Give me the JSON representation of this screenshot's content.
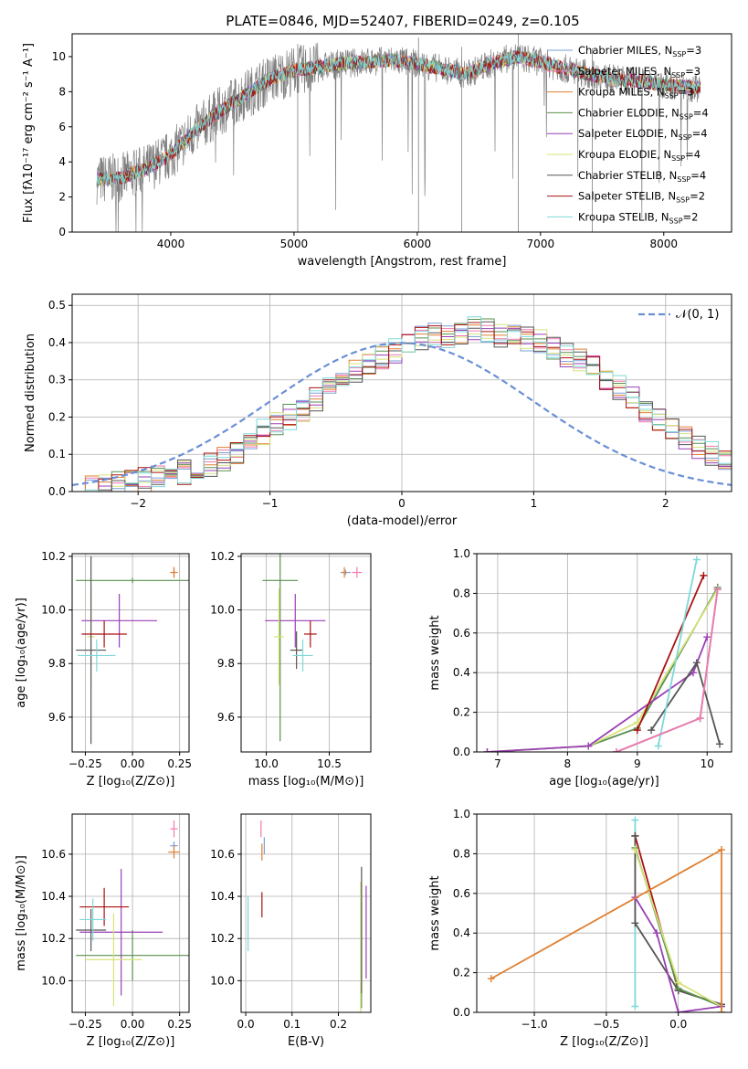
{
  "figure_title": "PLATE=0846, MJD=52407, FIBERID=0249, z=0.105",
  "colors": {
    "Chabrier MILES": "#7a9fd6",
    "Salpeter MILES": "#f07ab0",
    "Kroupa MILES": "#e07f30",
    "Chabrier ELODIE": "#5a8f4f",
    "Salpeter ELODIE": "#9a3fb5",
    "Kroupa ELODIE": "#d6e37a",
    "Chabrier STELIB": "#555555",
    "Salpeter STELIB": "#aa1111",
    "Kroupa STELIB": "#7fd8d8",
    "observed": "#808080",
    "normal": "#6a8fd6"
  },
  "chart_data": [
    {
      "id": "spectrum",
      "type": "line",
      "title": "PLATE=0846, MJD=52407, FIBERID=0249, z=0.105",
      "xlabel": "wavelength [Angstrom, rest frame]",
      "ylabel": "Flux [fλ10⁻¹⁷ erg cm⁻² s⁻¹ A⁻¹]",
      "xlim": [
        3200,
        8550
      ],
      "ylim": [
        0,
        11.3
      ],
      "xticks": [
        4000,
        5000,
        6000,
        7000,
        8000
      ],
      "yticks": [
        0,
        2,
        4,
        6,
        8,
        10
      ],
      "grid": false,
      "legend_position": "right",
      "continuum_x": [
        3400,
        3600,
        3800,
        4000,
        4200,
        4400,
        4600,
        4800,
        5000,
        5200,
        5400,
        5600,
        5800,
        6000,
        6200,
        6400,
        6600,
        6800,
        7000,
        7200,
        7400,
        7600,
        7800,
        8000,
        8300
      ],
      "continuum_y": [
        3.0,
        3.1,
        3.6,
        4.4,
        5.8,
        6.9,
        7.8,
        8.7,
        9.2,
        9.4,
        9.6,
        9.7,
        9.8,
        9.6,
        9.3,
        9.0,
        9.6,
        10.0,
        9.7,
        9.3,
        9.0,
        8.7,
        8.6,
        8.4,
        8.2
      ],
      "series": [
        {
          "name": "Chabrier MILES, N$_{SSP}$=3",
          "label_main": "Chabrier MILES, N",
          "label_sub": "SSP",
          "label_tail": "=3",
          "color": "#7a9fd6"
        },
        {
          "name": "Salpeter MILES, N$_{SSP}$=3",
          "label_main": "Salpeter MILES, N",
          "label_sub": "SSP",
          "label_tail": "=3",
          "color": "#f07ab0"
        },
        {
          "name": "Kroupa MILES, N$_{SSP}$=3",
          "label_main": "Kroupa MILES, N",
          "label_sub": "SSP",
          "label_tail": "=3",
          "color": "#e07f30"
        },
        {
          "name": "Chabrier ELODIE, N$_{SSP}$=4",
          "label_main": "Chabrier ELODIE, N",
          "label_sub": "SSP",
          "label_tail": "=4",
          "color": "#5a8f4f"
        },
        {
          "name": "Salpeter ELODIE, N$_{SSP}$=4",
          "label_main": "Salpeter ELODIE, N",
          "label_sub": "SSP",
          "label_tail": "=4",
          "color": "#9a3fb5"
        },
        {
          "name": "Kroupa ELODIE, N$_{SSP}$=4",
          "label_main": "Kroupa ELODIE, N",
          "label_sub": "SSP",
          "label_tail": "=4",
          "color": "#d6e37a"
        },
        {
          "name": "Chabrier STELIB, N$_{SSP}$=4",
          "label_main": "Chabrier STELIB, N",
          "label_sub": "SSP",
          "label_tail": "=4",
          "color": "#555555"
        },
        {
          "name": "Salpeter STELIB, N$_{SSP}$=2",
          "label_main": "Salpeter STELIB, N",
          "label_sub": "SSP",
          "label_tail": "=2",
          "color": "#aa1111"
        },
        {
          "name": "Kroupa STELIB, N$_{SSP}$=2",
          "label_main": "Kroupa STELIB, N",
          "label_sub": "SSP",
          "label_tail": "=2",
          "color": "#7fd8d8"
        }
      ]
    },
    {
      "id": "residuals",
      "type": "line",
      "xlabel": "(data-model)/error",
      "ylabel": "Normed distribution",
      "xlim": [
        -2.5,
        2.5
      ],
      "ylim": [
        0,
        0.53
      ],
      "xticks": [
        -2,
        -1,
        0,
        1,
        2
      ],
      "xticklabels": [
        "−2",
        "−1",
        "0",
        "1",
        "2"
      ],
      "yticks": [
        0.0,
        0.1,
        0.2,
        0.3,
        0.4,
        0.5
      ],
      "yticklabels": [
        "0.0",
        "0.1",
        "0.2",
        "0.3",
        "0.4",
        "0.5"
      ],
      "grid": true,
      "legend": "𝒩(0, 1)",
      "legend_position": "top-right",
      "normal_mu": 0,
      "normal_sigma": 1,
      "bin_width": 0.1,
      "bin_start": -2.5,
      "hist_base": [
        0.01,
        0.012,
        0.015,
        0.02,
        0.022,
        0.03,
        0.035,
        0.04,
        0.05,
        0.06,
        0.07,
        0.09,
        0.11,
        0.13,
        0.16,
        0.18,
        0.2,
        0.22,
        0.25,
        0.27,
        0.3,
        0.32,
        0.35,
        0.36,
        0.38,
        0.4,
        0.41,
        0.42,
        0.41,
        0.43,
        0.44,
        0.43,
        0.42,
        0.43,
        0.41,
        0.4,
        0.38,
        0.37,
        0.35,
        0.33,
        0.3,
        0.28,
        0.25,
        0.22,
        0.19,
        0.17,
        0.14,
        0.12,
        0.1,
        0.08
      ]
    },
    {
      "id": "age-vs-Z",
      "type": "scatter",
      "xlabel": "Z [log₁₀(Z/Z⊙)]",
      "ylabel": "age [log₁₀(age/yr)]",
      "xlim": [
        -0.32,
        0.3
      ],
      "ylim": [
        9.47,
        10.21
      ],
      "xticks": [
        -0.25,
        0.0,
        0.25
      ],
      "xticklabels": [
        "−0.25",
        "0.00",
        "0.25"
      ],
      "yticks": [
        9.6,
        9.8,
        10.0,
        10.2
      ],
      "yticklabels": [
        "9.6",
        "9.8",
        "10.0",
        "10.2"
      ],
      "grid": true,
      "points": [
        {
          "series": "Chabrier MILES",
          "x": 0.22,
          "y": 10.14,
          "xerr": 0.005,
          "yerr": 0.01
        },
        {
          "series": "Salpeter MILES",
          "x": 0.22,
          "y": 10.14,
          "xerr": 0.005,
          "yerr": 0.02
        },
        {
          "series": "Kroupa MILES",
          "x": 0.22,
          "y": 10.14,
          "xerr": 0.02,
          "yerr": 0.02
        },
        {
          "series": "Chabrier ELODIE",
          "x": 0.0,
          "y": 10.11,
          "xerr": 0.3,
          "yerr": 0.01
        },
        {
          "series": "Salpeter ELODIE",
          "x": -0.07,
          "y": 9.96,
          "xerr": 0.2,
          "yerr": 0.1
        },
        {
          "series": "Kroupa ELODIE",
          "x": -0.22,
          "y": 9.9,
          "xerr": 0.02,
          "yerr": 0.18
        },
        {
          "series": "Chabrier STELIB",
          "x": -0.22,
          "y": 9.85,
          "xerr": 0.08,
          "yerr": 0.35
        },
        {
          "series": "Salpeter STELIB",
          "x": -0.15,
          "y": 9.91,
          "xerr": 0.12,
          "yerr": 0.05
        },
        {
          "series": "Kroupa STELIB",
          "x": -0.19,
          "y": 9.83,
          "xerr": 0.1,
          "yerr": 0.06
        }
      ]
    },
    {
      "id": "age-vs-mass",
      "type": "scatter",
      "xlabel": "mass [log₁₀(M/M⊙)]",
      "ylabel": "",
      "xlim": [
        9.8,
        10.83
      ],
      "ylim": [
        9.47,
        10.21
      ],
      "xticks": [
        10.0,
        10.5
      ],
      "xticklabels": [
        "10.0",
        "10.5"
      ],
      "yticks": [
        9.6,
        9.8,
        10.0,
        10.2
      ],
      "yticklabels": [
        "9.6",
        "9.8",
        "10.0",
        "10.2"
      ],
      "grid": true,
      "points": [
        {
          "series": "Chabrier MILES",
          "x": 10.63,
          "y": 10.14,
          "xerr": 0.04,
          "yerr": 0.01
        },
        {
          "series": "Salpeter MILES",
          "x": 10.72,
          "y": 10.14,
          "xerr": 0.04,
          "yerr": 0.02
        },
        {
          "series": "Kroupa MILES",
          "x": 10.62,
          "y": 10.14,
          "xerr": 0.02,
          "yerr": 0.02
        },
        {
          "series": "Chabrier ELODIE",
          "x": 10.11,
          "y": 10.11,
          "xerr": 0.14,
          "yerr": 0.6
        },
        {
          "series": "Salpeter ELODIE",
          "x": 10.23,
          "y": 9.96,
          "xerr": 0.24,
          "yerr": 0.1
        },
        {
          "series": "Kroupa ELODIE",
          "x": 10.1,
          "y": 9.9,
          "xerr": 0.04,
          "yerr": 0.18
        },
        {
          "series": "Chabrier STELIB",
          "x": 10.24,
          "y": 9.85,
          "xerr": 0.05,
          "yerr": 0.07
        },
        {
          "series": "Salpeter STELIB",
          "x": 10.35,
          "y": 9.91,
          "xerr": 0.05,
          "yerr": 0.05
        },
        {
          "series": "Kroupa STELIB",
          "x": 10.29,
          "y": 9.83,
          "xerr": 0.08,
          "yerr": 0.06
        }
      ]
    },
    {
      "id": "massweight-vs-age",
      "type": "line",
      "xlabel": "age [log₁₀(age/yr)]",
      "ylabel": "mass weight",
      "xlim": [
        6.7,
        10.35
      ],
      "ylim": [
        0,
        1.0
      ],
      "xticks": [
        7,
        8,
        9,
        10
      ],
      "xticklabels": [
        "7",
        "8",
        "9",
        "10"
      ],
      "yticks": [
        0.0,
        0.2,
        0.4,
        0.6,
        0.8,
        1.0
      ],
      "yticklabels": [
        "0.0",
        "0.2",
        "0.4",
        "0.6",
        "0.8",
        "1.0"
      ],
      "grid": true,
      "series": [
        {
          "series": "Chabrier ELODIE",
          "x": [
            6.85,
            8.3,
            9.0,
            10.15
          ],
          "y": [
            0.0,
            0.03,
            0.12,
            0.83
          ]
        },
        {
          "series": "Kroupa ELODIE",
          "x": [
            6.85,
            8.3,
            9.0,
            10.15
          ],
          "y": [
            0.0,
            0.03,
            0.15,
            0.82
          ]
        },
        {
          "series": "Salpeter ELODIE",
          "x": [
            6.85,
            8.3,
            9.8,
            10.0
          ],
          "y": [
            0.0,
            0.03,
            0.4,
            0.58
          ]
        },
        {
          "series": "Chabrier STELIB",
          "x": [
            9.2,
            9.85,
            10.18
          ],
          "y": [
            0.11,
            0.45,
            0.04
          ]
        },
        {
          "series": "Salpeter STELIB",
          "x": [
            9.0,
            9.95
          ],
          "y": [
            0.11,
            0.89
          ]
        },
        {
          "series": "Kroupa STELIB",
          "x": [
            9.3,
            9.85
          ],
          "y": [
            0.03,
            0.97
          ]
        },
        {
          "series": "Kroupa MILES",
          "x": [
            8.7,
            9.9,
            10.15
          ],
          "y": [
            0.0,
            0.17,
            0.82
          ]
        },
        {
          "series": "Chabrier MILES",
          "x": [
            8.7,
            9.9,
            10.15
          ],
          "y": [
            0.0,
            0.17,
            0.82
          ]
        },
        {
          "series": "Salpeter MILES",
          "x": [
            8.7,
            9.9,
            10.15
          ],
          "y": [
            0.0,
            0.17,
            0.82
          ]
        }
      ]
    },
    {
      "id": "mass-vs-Z",
      "type": "scatter",
      "xlabel": "Z [log₁₀(Z/Z⊙)]",
      "ylabel": "mass [log₁₀(M/M⊙)]",
      "xlim": [
        -0.32,
        0.3
      ],
      "ylim": [
        9.85,
        10.79
      ],
      "xticks": [
        -0.25,
        0.0,
        0.25
      ],
      "xticklabels": [
        "−0.25",
        "0.00",
        "0.25"
      ],
      "yticks": [
        10.0,
        10.2,
        10.4,
        10.6
      ],
      "yticklabels": [
        "10.0",
        "10.2",
        "10.4",
        "10.6"
      ],
      "grid": true,
      "points": [
        {
          "series": "Chabrier MILES",
          "x": 0.22,
          "y": 10.64,
          "xerr": 0.02,
          "yerr": 0.02
        },
        {
          "series": "Salpeter MILES",
          "x": 0.22,
          "y": 10.72,
          "xerr": 0.02,
          "yerr": 0.04
        },
        {
          "series": "Kroupa MILES",
          "x": 0.22,
          "y": 10.61,
          "xerr": 0.03,
          "yerr": 0.03
        },
        {
          "series": "Chabrier ELODIE",
          "x": 0.0,
          "y": 10.12,
          "xerr": 0.3,
          "yerr": 0.12
        },
        {
          "series": "Salpeter ELODIE",
          "x": -0.06,
          "y": 10.23,
          "xerr": 0.22,
          "yerr": 0.3
        },
        {
          "series": "Kroupa ELODIE",
          "x": -0.1,
          "y": 10.1,
          "xerr": 0.15,
          "yerr": 0.22
        },
        {
          "series": "Chabrier STELIB",
          "x": -0.22,
          "y": 10.24,
          "xerr": 0.08,
          "yerr": 0.1
        },
        {
          "series": "Salpeter STELIB",
          "x": -0.15,
          "y": 10.35,
          "xerr": 0.13,
          "yerr": 0.09
        },
        {
          "series": "Kroupa STELIB",
          "x": -0.21,
          "y": 10.29,
          "xerr": 0.07,
          "yerr": 0.1
        }
      ]
    },
    {
      "id": "mass-vs-EBV",
      "type": "scatter",
      "xlabel": "E(B-V)",
      "ylabel": "",
      "xlim": [
        -0.01,
        0.27
      ],
      "ylim": [
        9.85,
        10.79
      ],
      "xticks": [
        0.0,
        0.1,
        0.2
      ],
      "xticklabels": [
        "0.0",
        "0.1",
        "0.2"
      ],
      "yticks": [
        10.0,
        10.2,
        10.4,
        10.6
      ],
      "yticklabels": [
        "10.0",
        "10.2",
        "10.4",
        "10.6"
      ],
      "grid": true,
      "points": [
        {
          "series": "Chabrier MILES",
          "x": 0.04,
          "y": 10.64,
          "xerr": 0.0,
          "yerr": 0.04
        },
        {
          "series": "Salpeter MILES",
          "x": 0.033,
          "y": 10.72,
          "xerr": 0.0,
          "yerr": 0.04
        },
        {
          "series": "Kroupa MILES",
          "x": 0.035,
          "y": 10.61,
          "xerr": 0.0,
          "yerr": 0.04
        },
        {
          "series": "Chabrier ELODIE",
          "x": 0.25,
          "y": 10.12,
          "xerr": 0.0,
          "yerr": 0.25
        },
        {
          "series": "Salpeter ELODIE",
          "x": 0.26,
          "y": 10.23,
          "xerr": 0.0,
          "yerr": 0.22
        },
        {
          "series": "Kroupa ELODIE",
          "x": 0.248,
          "y": 10.1,
          "xerr": 0.0,
          "yerr": 0.37
        },
        {
          "series": "Chabrier STELIB",
          "x": 0.25,
          "y": 10.24,
          "xerr": 0.0,
          "yerr": 0.3
        },
        {
          "series": "Salpeter STELIB",
          "x": 0.035,
          "y": 10.36,
          "xerr": 0.0,
          "yerr": 0.06
        },
        {
          "series": "Kroupa STELIB",
          "x": 0.005,
          "y": 10.27,
          "xerr": 0.0,
          "yerr": 0.13
        }
      ]
    },
    {
      "id": "massweight-vs-Z",
      "type": "line",
      "xlabel": "Z [log₁₀(Z/Z⊙)]",
      "ylabel": "mass weight",
      "xlim": [
        -1.4,
        0.37
      ],
      "ylim": [
        0,
        1.0
      ],
      "xticks": [
        -1.0,
        -0.5,
        0.0
      ],
      "xticklabels": [
        "−1.0",
        "−0.5",
        "0.0"
      ],
      "yticks": [
        0.0,
        0.2,
        0.4,
        0.6,
        0.8,
        1.0
      ],
      "yticklabels": [
        "0.0",
        "0.2",
        "0.4",
        "0.6",
        "0.8",
        "1.0"
      ],
      "grid": true,
      "series": [
        {
          "series": "Kroupa STELIB",
          "x": [
            -0.3,
            -0.3
          ],
          "y": [
            0.97,
            0.03
          ]
        },
        {
          "series": "Salpeter STELIB",
          "x": [
            -0.3,
            0.0,
            0.3
          ],
          "y": [
            0.89,
            0.11,
            0.04
          ]
        },
        {
          "series": "Chabrier STELIB",
          "x": [
            -0.3,
            -0.3,
            0.0,
            0.3
          ],
          "y": [
            0.89,
            0.45,
            0.11,
            0.04
          ]
        },
        {
          "series": "Chabrier ELODIE",
          "x": [
            -0.3,
            0.0,
            0.3,
            0.3
          ],
          "y": [
            0.83,
            0.12,
            0.03,
            0.0
          ]
        },
        {
          "series": "Kroupa ELODIE",
          "x": [
            -0.3,
            0.0,
            0.3,
            0.3
          ],
          "y": [
            0.82,
            0.15,
            0.03,
            0.0
          ]
        },
        {
          "series": "Salpeter ELODIE",
          "x": [
            -0.3,
            -0.15,
            0.0,
            0.3
          ],
          "y": [
            0.58,
            0.4,
            0.0,
            0.03
          ]
        },
        {
          "series": "Kroupa MILES",
          "x": [
            -1.3,
            0.3,
            0.3
          ],
          "y": [
            0.17,
            0.82,
            0.0
          ]
        }
      ]
    }
  ]
}
